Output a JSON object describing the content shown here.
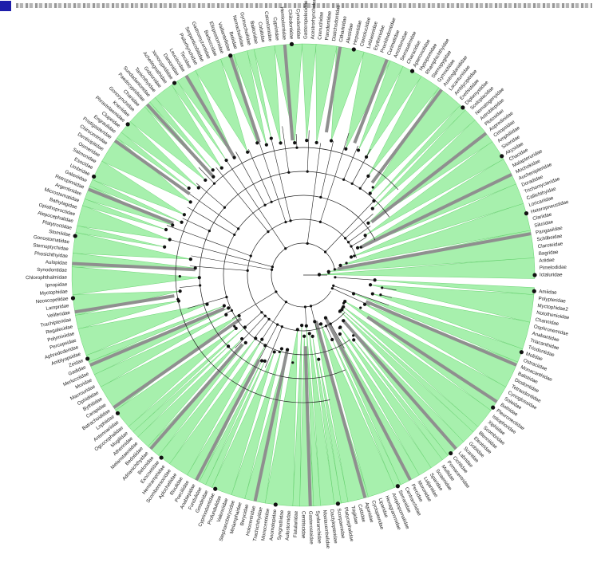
{
  "colors": {
    "clade_fill": "#a7f0ad",
    "clade_stroke": "#52c95c",
    "highlight": "#8f8f8f",
    "branch": "#222222",
    "node": "#111111",
    "header_square": "#1d1daa"
  },
  "icons": {
    "header": "blue-square-icon"
  },
  "tree": {
    "taxa": [
      "Ictaluridae",
      "Pimelodidae",
      "Ariidae",
      "Bagridae",
      "Claroteidae",
      "Schilbeidae",
      "Pangasiidae",
      "Siluridae",
      "Clariidae",
      "Heteropneustidae",
      "Loricariidae",
      "Callichthyidae",
      "Trichomycteridae",
      "Doradidae",
      "Auchenipteridae",
      "Mochokidae",
      "Malapteruridae",
      "Chacidae",
      "Akysidae",
      "Sisoridae",
      "Amphiliidae",
      "Cetopsidae",
      "Aspredinidae",
      "Plotosidae",
      "Astroblepidae",
      "Nematogenyidae",
      "Scoloplacidae",
      "Diplomystidae",
      "Erethistidae",
      "Amblycipitidae",
      "Lacantuniidae",
      "Austroglanididae",
      "Gymnotidae",
      "Sternopygidae",
      "Rhamphichthyidae",
      "Hypopomidae",
      "Apteronotidae",
      "Characidae",
      "Serrasalmidae",
      "Anostomidae",
      "Curimatidae",
      "Prochilodontidae",
      "Erythrinidae",
      "Lebiasinidae",
      "Ctenoluciidae",
      "Hepsetidae",
      "Alestidae",
      "Citharinidae",
      "Distichodontidae",
      "Parodontidae",
      "Crenuchidae",
      "Acestrorhynchidae",
      "Gasteropelecidae",
      "Cynodontidae",
      "Chilodontidae",
      "Hemiodontidae",
      "Cyprinidae",
      "Catostomidae",
      "Cobitidae",
      "Balitoridae",
      "Gyrinocheilidae",
      "Nemacheilidae",
      "Botiidae",
      "Vaillantellidae",
      "Ellopostomidae",
      "Barbuccidae",
      "Gastromyzontidae",
      "Serpenticobitidae",
      "Psilorhynchidae",
      "Tincidae",
      "Leuciscidae",
      "Danionidae",
      "Xenocyprididae",
      "Acheilognathidae",
      "Gobionidae",
      "Tanichthyidae",
      "Sundadanionidae",
      "Paedocyprididae",
      "Chanidae",
      "Gonorynchidae",
      "Kneriidae",
      "Phractolaemidae",
      "Clupeidae",
      "Engraulidae",
      "Pristigasteridae",
      "Chirocentridae",
      "Denticipitidae",
      "Osmeridae",
      "Salmonidae",
      "Esocidae",
      "Umbridae",
      "Galaxiidae",
      "Retropinnidae",
      "Argentinidae",
      "Microstomatidae",
      "Bathylagidae",
      "Opisthoproctidae",
      "Alepocephalidae",
      "Platytroctidae",
      "Stomiidae",
      "Gonostomatidae",
      "Sternoptychidae",
      "Phosichthyidae",
      "Aulopidae",
      "Synodontidae",
      "Chlorophthalmidae",
      "Ipnopidae",
      "Myctophidae",
      "Neoscopelidae",
      "Lampridae",
      "Veliferidae",
      "Trachipteridae",
      "Regalecidae",
      "Polymixiidae",
      "Percopsidae",
      "Aphredoderidae",
      "Amblyopsidae",
      "Zeidae",
      "Gadidae",
      "Merlucciidae",
      "Moridae",
      "Macrouridae",
      "Ophidiidae",
      "Bythitidae",
      "Carapidae",
      "Batrachoididae",
      "Lophiidae",
      "Antennariidae",
      "Ogcocephalidae",
      "Mugilidae",
      "Atherinidae",
      "Melanotaeniidae",
      "Bedotiidae",
      "Adrianichthyidae",
      "Belonidae",
      "Exocoetidae",
      "Hemiramphidae",
      "Scomberesocidae",
      "Aplocheilidae",
      "Rivulidae",
      "Poeciliidae",
      "Anablepidae",
      "Fundulidae",
      "Goodeidae",
      "Cyprinodontidae",
      "Profundulidae",
      "Valenciidae",
      "Stephanoberycidae",
      "Melamphaidae",
      "Berycidae",
      "Holocentridae",
      "Trachichthyidae",
      "Monocentridae",
      "Anomalopidae",
      "Syngnathidae",
      "Aulostomidae",
      "Fistulariidae",
      "Centriscidae",
      "Gasterosteidae",
      "Synbranchidae",
      "Mastacembelidae",
      "Dactylopteridae",
      "Scorpaenidae",
      "Platycephalidae",
      "Triglidae",
      "Cottidae",
      "Agonidae",
      "Cyclopteridae",
      "Liparidae",
      "Hexagrammidae",
      "Anoplopomatidae",
      "Serranidae",
      "Centrarchidae",
      "Percidae",
      "Moronidae",
      "Lutjanidae",
      "Sparidae",
      "Sciaenidae",
      "Mullidae",
      "Pomacentridae",
      "Cichlidae",
      "Labridae",
      "Scaridae",
      "Gobiidae",
      "Eleotridae",
      "Blenniidae",
      "Scombridae",
      "Xiphiidae",
      "Istiophoridae",
      "Pleuronectidae",
      "Bothidae",
      "Soleidae",
      "Cynoglossidae",
      "Tetraodontidae",
      "Diodontidae",
      "Balistidae",
      "Monacanthidae",
      "Ostraciidae",
      "Molidae",
      "Triodontidae",
      "Triacanthidae",
      "Anabantidae",
      "Osphronemidae",
      "Channidae",
      "Notothenioidae",
      "Myctophidae2",
      "Polypteridae",
      "Amiidae"
    ]
  }
}
